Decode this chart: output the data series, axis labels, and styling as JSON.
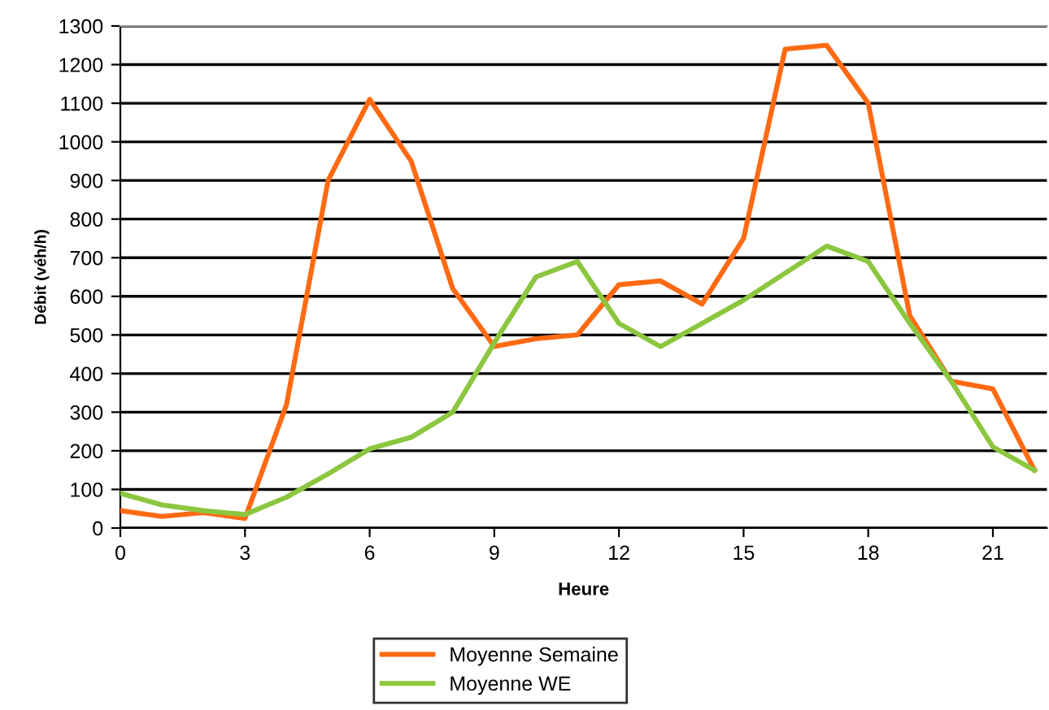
{
  "chart_data": {
    "type": "line",
    "xlabel": "Heure",
    "ylabel": "Débit (véh/h)",
    "x": [
      0,
      1,
      2,
      3,
      4,
      5,
      6,
      7,
      8,
      9,
      10,
      11,
      12,
      13,
      14,
      15,
      16,
      17,
      18,
      19,
      20,
      21,
      22
    ],
    "series": [
      {
        "name": "Moyenne Semaine",
        "color": "#ff6a13",
        "values": [
          45,
          30,
          40,
          25,
          320,
          900,
          1110,
          950,
          620,
          470,
          490,
          500,
          630,
          640,
          580,
          750,
          1240,
          1250,
          1100,
          550,
          380,
          360,
          150
        ]
      },
      {
        "name": "Moyenne WE",
        "color": "#8cc63f",
        "values": [
          90,
          60,
          45,
          35,
          80,
          140,
          205,
          235,
          300,
          480,
          650,
          690,
          530,
          470,
          530,
          590,
          660,
          730,
          690,
          530,
          380,
          210,
          150
        ]
      }
    ],
    "xlim": [
      0,
      22.3
    ],
    "xticks": [
      0,
      3,
      6,
      9,
      12,
      15,
      18,
      21
    ],
    "ylim": [
      0,
      1300
    ],
    "yticks": [
      0,
      100,
      200,
      300,
      400,
      500,
      600,
      700,
      800,
      900,
      1000,
      1100,
      1200,
      1300
    ],
    "grid": "y",
    "legend": "bottom",
    "marker": "none",
    "line_style": "solid"
  }
}
